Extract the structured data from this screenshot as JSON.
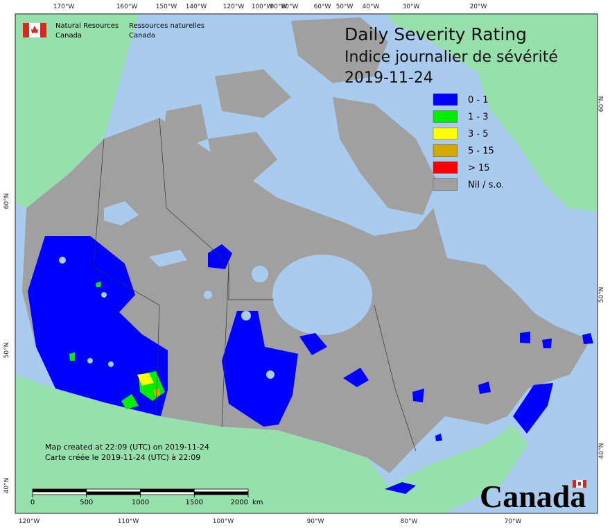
{
  "header": {
    "agency_en": [
      "Natural Resources",
      "Canada"
    ],
    "agency_fr": [
      "Ressources naturelles",
      "Canada"
    ]
  },
  "title": [
    "Daily Severity Rating",
    "Indice journalier de sévérité",
    "2019-11-24"
  ],
  "legend": [
    {
      "label": "0 - 1",
      "color": "#0000ff"
    },
    {
      "label": "1 - 3",
      "color": "#00ee00"
    },
    {
      "label": "3 - 5",
      "color": "#ffff00"
    },
    {
      "label": "5 - 15",
      "color": "#d4aa00"
    },
    {
      "label": "> 15",
      "color": "#ff0000"
    },
    {
      "label": "Nil / s.o.",
      "color": "#a0a0a0"
    }
  ],
  "top_longitudes": [
    "170°W",
    "160°W",
    "150°W",
    "140°W",
    "120°W",
    "100°W",
    "90°W",
    "80°W",
    "60°W",
    "50°W",
    "40°W",
    "30°W",
    "20°W"
  ],
  "bottom_longitudes": [
    "120°W",
    "110°W",
    "100°W",
    "90°W",
    "80°W",
    "70°W"
  ],
  "left_latitudes": [
    "60°N",
    "50°N",
    "40°N"
  ],
  "right_latitudes": [
    "60°N",
    "50°N",
    "40°N"
  ],
  "footnote": [
    "Map created at 22:09 (UTC) on 2019-11-24",
    "Carte créée le 2019-11-24 (UTC) à 22:09"
  ],
  "scale_bar": {
    "ticks": [
      0,
      500,
      1000,
      1500,
      2000
    ],
    "unit": "km"
  },
  "wordmark": "Canada"
}
